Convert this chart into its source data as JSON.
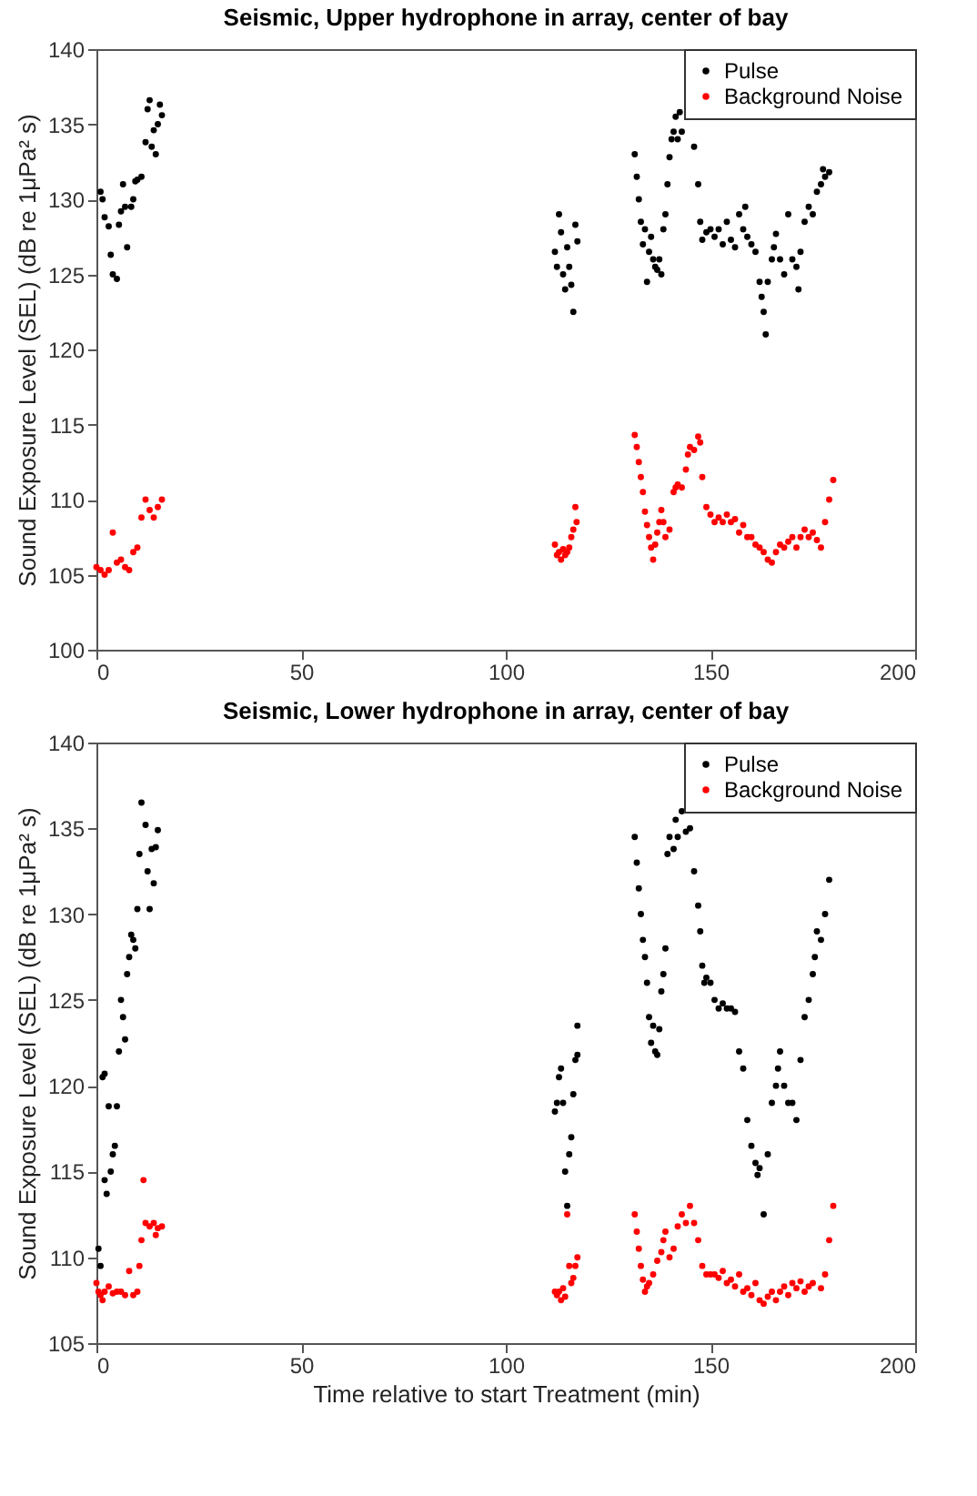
{
  "chart_data": [
    {
      "type": "scatter",
      "title": "Seismic, Upper hydrophone in array, center of bay",
      "ylabel": "Sound Exposure Level (SEL) (dB re 1μPa² s)",
      "xlim": [
        0,
        200
      ],
      "xticks": [
        0,
        50,
        100,
        150,
        200
      ],
      "ylim": [
        100,
        140
      ],
      "yticks": [
        100,
        105,
        110,
        115,
        120,
        125,
        130,
        135,
        140
      ],
      "legend": "top right",
      "marker": "circle",
      "series": [
        {
          "name": "Pulse",
          "color": "#000000",
          "x": [
            1,
            1.5,
            2,
            3,
            3.5,
            4,
            5,
            5.5,
            6,
            6.5,
            7,
            7.5,
            8.5,
            9,
            9.5,
            10,
            11,
            12,
            12.5,
            13,
            13.5,
            14,
            14.5,
            15,
            15.5,
            16,
            112,
            112.5,
            113,
            113.5,
            114,
            114.5,
            115,
            115.5,
            116,
            116.5,
            117,
            117.5,
            131.5,
            132,
            132.5,
            133,
            133.5,
            134,
            134.5,
            135,
            135.5,
            136,
            136.5,
            137,
            137.5,
            138,
            138.5,
            139,
            139.5,
            140,
            140.5,
            141,
            141.5,
            142,
            142.5,
            143,
            146,
            147,
            147.5,
            148,
            149,
            150,
            151,
            152,
            153,
            154,
            155,
            156,
            157,
            158,
            158.5,
            159,
            160,
            161,
            162,
            162.5,
            163,
            163.5,
            164,
            165,
            165.5,
            166,
            167,
            168,
            169,
            170,
            171,
            171.5,
            172,
            173,
            174,
            175,
            176,
            177,
            177.5,
            178,
            179
          ],
          "values": [
            130.5,
            130,
            128.8,
            128.2,
            126.3,
            125,
            124.7,
            128.3,
            129.2,
            131,
            129.5,
            126.8,
            129.5,
            130,
            131.2,
            131.3,
            131.5,
            133.8,
            136,
            136.6,
            133.5,
            134.6,
            133,
            135,
            136.3,
            135.6,
            126.5,
            125.5,
            129,
            127.8,
            125,
            124,
            126.8,
            125.5,
            124.3,
            122.5,
            128.3,
            127.2,
            133,
            131.5,
            130,
            128.5,
            127,
            128,
            124.5,
            126.5,
            127.5,
            126,
            125.5,
            125.3,
            126,
            125,
            128,
            129,
            131,
            132.8,
            134,
            134.5,
            135.5,
            134,
            135.8,
            134.5,
            133.5,
            131,
            128.5,
            127.3,
            127.8,
            128,
            127.5,
            128,
            127,
            128.5,
            127.3,
            126.8,
            129,
            128,
            129.5,
            127.5,
            127,
            126.5,
            124.5,
            123.5,
            122.5,
            121,
            124.5,
            126,
            126.8,
            127.7,
            126,
            125,
            129,
            126,
            125.5,
            124,
            126.5,
            128.5,
            129.5,
            129,
            130.5,
            131,
            132,
            131.5,
            131.8
          ]
        },
        {
          "name": "Background Noise",
          "color": "#ff0000",
          "x": [
            0,
            1,
            2,
            3,
            4,
            5,
            6,
            7,
            8,
            9,
            10,
            11,
            12,
            13,
            14,
            15,
            16,
            112,
            112.5,
            113,
            113.5,
            114,
            114.5,
            115,
            115.5,
            116,
            116.5,
            117,
            117.3,
            131.5,
            132,
            132.5,
            133,
            133.5,
            134,
            134.5,
            135,
            135.5,
            136,
            136.5,
            137,
            137.5,
            138,
            138.5,
            139,
            140,
            141,
            141.5,
            142,
            143,
            144,
            144.5,
            145,
            146,
            147,
            147.5,
            148,
            149,
            150,
            151,
            152,
            153,
            154,
            155,
            156,
            157,
            158,
            159,
            160,
            161,
            162,
            163,
            164,
            165,
            166,
            167,
            168,
            169,
            170,
            171,
            172,
            173,
            174,
            175,
            176,
            177,
            178,
            179,
            180
          ],
          "values": [
            105.5,
            105.3,
            105,
            105.3,
            107.8,
            105.8,
            106,
            105.5,
            105.3,
            106.5,
            106.8,
            108.8,
            110,
            109.3,
            108.8,
            109.5,
            110,
            107,
            106.3,
            106.5,
            106,
            106.7,
            106.3,
            106.5,
            106.8,
            107.5,
            108,
            109.5,
            108.5,
            114.3,
            113.5,
            112.5,
            111.5,
            110.5,
            109.2,
            108.3,
            107.5,
            106.8,
            106,
            107,
            107.8,
            108.5,
            109.3,
            108.5,
            107.5,
            108,
            110.5,
            110.8,
            111,
            110.8,
            112,
            113,
            113.5,
            113.3,
            114.2,
            113.8,
            111.5,
            109.5,
            109,
            108.5,
            108.8,
            108.5,
            109,
            108.5,
            108.7,
            107.8,
            108.3,
            107.5,
            107.5,
            107,
            106.8,
            106.5,
            106,
            105.8,
            106.5,
            107,
            106.8,
            107.2,
            107.5,
            106.8,
            107.5,
            108,
            107.5,
            107.8,
            107.3,
            106.8,
            108.5,
            110,
            111.3
          ]
        }
      ]
    },
    {
      "type": "scatter",
      "title": "Seismic, Lower hydrophone in array, center of bay",
      "xlabel": "Time relative to start Treatment (min)",
      "ylabel": "Sound Exposure Level (SEL) (dB re 1μPa² s)",
      "xlim": [
        0,
        200
      ],
      "xticks": [
        0,
        50,
        100,
        150,
        200
      ],
      "ylim": [
        105,
        140
      ],
      "yticks": [
        105,
        110,
        115,
        120,
        125,
        130,
        135,
        140
      ],
      "legend": "top right",
      "marker": "circle",
      "series": [
        {
          "name": "Pulse",
          "color": "#000000",
          "x": [
            0.5,
            1,
            1.5,
            2,
            2,
            2.5,
            3,
            3.5,
            4,
            4.5,
            5,
            5.5,
            6,
            6.5,
            7,
            7.5,
            8,
            8.5,
            9,
            9.5,
            10,
            10.5,
            11,
            12,
            12.5,
            13,
            13.5,
            14,
            14.5,
            15,
            112,
            112.5,
            113,
            113.5,
            114,
            114.5,
            115,
            115.5,
            116,
            116.5,
            117,
            117.5,
            117.5,
            131.5,
            132,
            132.5,
            133,
            133.5,
            134,
            134.5,
            135,
            135.5,
            136,
            136.5,
            137,
            137.5,
            138,
            138.5,
            139,
            139.5,
            140,
            141,
            141.5,
            142,
            143,
            144,
            145,
            146,
            147,
            147.5,
            148,
            148.5,
            149,
            150,
            151,
            152,
            153,
            154,
            155,
            156,
            157,
            158,
            159,
            160,
            161,
            161.5,
            162,
            163,
            164,
            165,
            166,
            166.5,
            167,
            168,
            169,
            170,
            171,
            172,
            173,
            174,
            175,
            175.5,
            176,
            177,
            178,
            179
          ],
          "values": [
            110.5,
            109.5,
            120.5,
            120.7,
            114.5,
            113.7,
            118.8,
            115,
            116,
            116.5,
            118.8,
            122,
            125,
            124,
            122.7,
            126.5,
            127.5,
            128.8,
            128.5,
            128,
            130.3,
            133.5,
            136.5,
            135.2,
            132.5,
            130.3,
            133.8,
            131.8,
            133.9,
            134.9,
            118.5,
            119,
            120.5,
            121,
            119,
            115,
            113,
            116,
            117,
            119.5,
            121.5,
            123.5,
            121.8,
            134.5,
            133,
            131.5,
            130,
            128.5,
            127.5,
            126,
            124,
            122.5,
            123.5,
            122,
            121.8,
            123.3,
            125.5,
            126.5,
            128,
            133.5,
            134.5,
            133.8,
            135.5,
            134.5,
            136,
            134.8,
            135,
            132.5,
            130.5,
            129,
            127,
            126,
            126.3,
            126,
            125,
            124.5,
            124.8,
            124.5,
            124.5,
            124.3,
            122,
            121,
            118,
            116.5,
            115.5,
            114.8,
            115.2,
            112.5,
            116,
            119,
            120,
            121,
            122,
            120,
            119,
            119,
            118,
            121.5,
            124,
            125,
            126.5,
            127.5,
            129,
            128.5,
            130,
            132
          ]
        },
        {
          "name": "Background Noise",
          "color": "#ff0000",
          "x": [
            0,
            0.5,
            1,
            1.5,
            2,
            3,
            4,
            5,
            6,
            7,
            8,
            9,
            10,
            10.5,
            11,
            11.5,
            12,
            13,
            14,
            14.5,
            15,
            16,
            112,
            112.5,
            113,
            113.5,
            114,
            114.5,
            115,
            115.5,
            116,
            116.5,
            117,
            117.5,
            131.5,
            132,
            132.5,
            133,
            133.5,
            134,
            134.5,
            135,
            136,
            137,
            138,
            138.5,
            139,
            140,
            141,
            142,
            143,
            144,
            145,
            146,
            147,
            148,
            149,
            150,
            151,
            152,
            153,
            154,
            155,
            156,
            157,
            158,
            159,
            160,
            161,
            162,
            163,
            164,
            165,
            166,
            167,
            168,
            169,
            170,
            171,
            172,
            173,
            174,
            175,
            177,
            178,
            179,
            180
          ],
          "values": [
            108.5,
            108,
            107.8,
            107.5,
            108,
            108.3,
            107.9,
            108,
            108,
            107.8,
            109.2,
            107.8,
            108,
            109.5,
            111,
            114.5,
            112,
            111.8,
            112,
            111.3,
            111.7,
            111.8,
            108,
            107.8,
            108,
            107.5,
            108.2,
            107.7,
            112.5,
            109.5,
            108.5,
            108.8,
            109.5,
            110,
            112.5,
            111.5,
            110.5,
            109.5,
            108.7,
            108,
            108.3,
            108.5,
            109,
            109.8,
            110.3,
            111,
            111.5,
            110,
            110.5,
            111.8,
            112.5,
            112,
            113,
            112,
            111,
            109.5,
            109,
            109,
            109,
            108.8,
            109.2,
            108.5,
            108.7,
            108.3,
            109,
            108,
            108.2,
            107.8,
            108.5,
            107.5,
            107.3,
            107.7,
            108,
            107.5,
            108,
            108.3,
            107.8,
            108.5,
            108.2,
            108.6,
            108,
            108.3,
            108.5,
            108.2,
            109,
            111,
            113
          ]
        }
      ]
    }
  ]
}
